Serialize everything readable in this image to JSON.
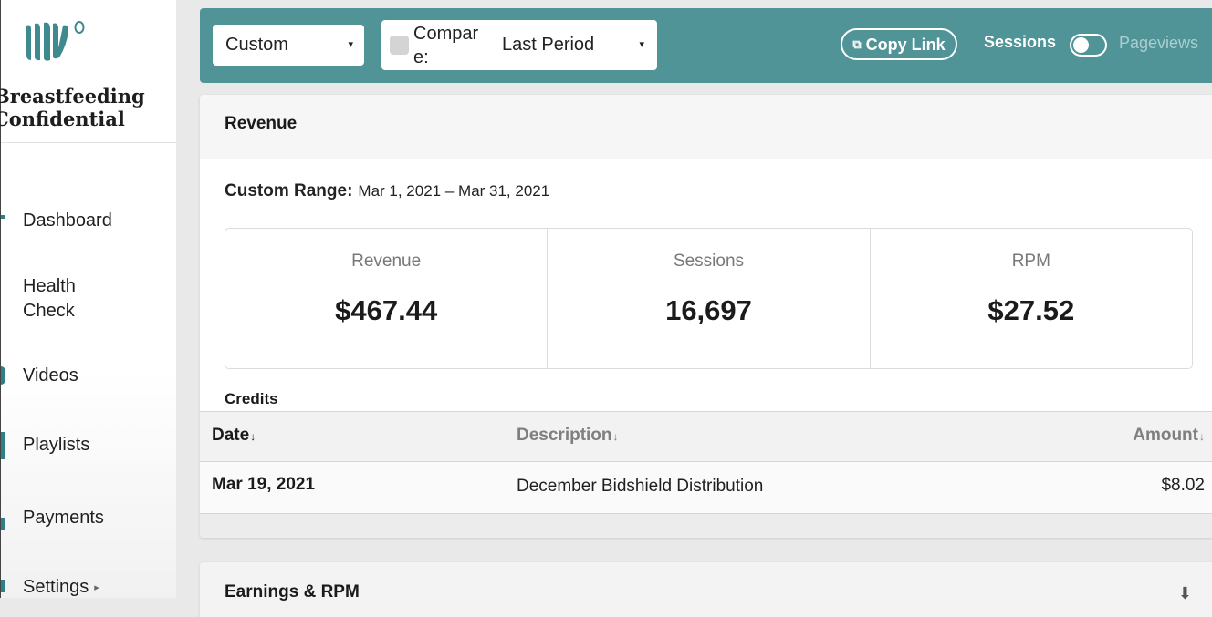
{
  "brand": {
    "site_name_line1": "Breastfeeding",
    "site_name_line2": "Confidential",
    "logo_icon": "mediavine-logo-icon",
    "accent_color": "#509497"
  },
  "sidebar": {
    "items": [
      {
        "label": "Dashboard",
        "icon": "dashboard-icon"
      },
      {
        "label": "Health Check",
        "icon": "health-check-icon"
      },
      {
        "label": "Videos",
        "icon": "videos-icon"
      },
      {
        "label": "Playlists",
        "icon": "playlists-icon"
      },
      {
        "label": "Payments",
        "icon": "payments-icon"
      },
      {
        "label": "Settings",
        "icon": "settings-icon",
        "caret": "▸"
      }
    ]
  },
  "toolbar": {
    "range_value": "Custom",
    "compare_label": "Compare:",
    "compare_value": "Last Period",
    "copy_link_label": "Copy Link",
    "sessions_label": "Sessions",
    "pageviews_label": "Pageviews",
    "caret": "▾"
  },
  "revenue": {
    "title": "Revenue",
    "range_label": "Custom Range:",
    "range_value": "Mar 1, 2021 – Mar 31, 2021",
    "stats": [
      {
        "label": "Revenue",
        "value": "$467.44"
      },
      {
        "label": "Sessions",
        "value": "16,697"
      },
      {
        "label": "RPM",
        "value": "$27.52"
      }
    ],
    "credits_title": "Credits",
    "table": {
      "headers": {
        "date": "Date",
        "description": "Description",
        "amount": "Amount",
        "sort_indicator": "↓"
      },
      "rows": [
        {
          "date": "Mar 19, 2021",
          "description": "December Bidshield Distribution",
          "amount": "$8.02"
        }
      ]
    }
  },
  "earnings": {
    "title": "Earnings & RPM"
  }
}
